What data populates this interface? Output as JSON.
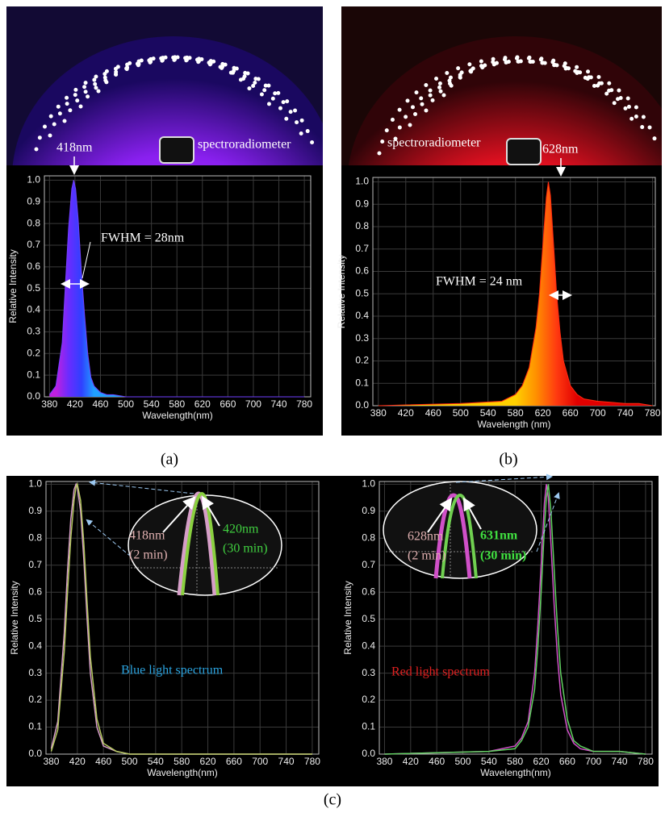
{
  "panel_labels": [
    "(a)",
    "(b)",
    "(c)"
  ],
  "chart_data": [
    {
      "type": "area",
      "x_label": "Wavelength(nm)",
      "y_label": "Relative Intensity",
      "annotations": [
        "418nm",
        "spectroradiometer",
        "FWHM = 28nm"
      ],
      "x": [
        380,
        390,
        400,
        405,
        410,
        415,
        418,
        421,
        425,
        430,
        435,
        440,
        445,
        450,
        460,
        470,
        480,
        500,
        540,
        600,
        700,
        780
      ],
      "values": [
        0.01,
        0.05,
        0.25,
        0.52,
        0.78,
        0.96,
        1.0,
        0.96,
        0.82,
        0.58,
        0.38,
        0.2,
        0.09,
        0.05,
        0.02,
        0.01,
        0.01,
        0,
        0,
        0,
        0,
        0
      ],
      "color": "#7040ff",
      "fill_colors": [
        "#c020e0",
        "#6a2cff",
        "#3040ff",
        "#20a0ff"
      ],
      "xlim": [
        372,
        790
      ],
      "xticks": [
        380,
        420,
        460,
        500,
        540,
        580,
        620,
        660,
        700,
        740,
        780
      ],
      "ylim": [
        0,
        1.02
      ],
      "yticks": [
        {
          "value": 0,
          "label": "0.0"
        },
        0.1,
        0.2,
        0.3,
        0.4,
        0.5,
        0.6,
        0.7,
        0.8,
        0.9,
        {
          "value": 1,
          "label": "1.0"
        }
      ],
      "grid": true
    },
    {
      "type": "area",
      "x_label": "Wavelength (nm)",
      "y_label": "Relative Intensity",
      "annotations": [
        "spectroradiometer",
        "628nm",
        "FWHM = 24 nm"
      ],
      "x": [
        380,
        500,
        560,
        580,
        590,
        600,
        610,
        615,
        620,
        625,
        628,
        631,
        636,
        640,
        645,
        650,
        660,
        670,
        680,
        700,
        740,
        760,
        780
      ],
      "values": [
        0,
        0.01,
        0.02,
        0.05,
        0.09,
        0.17,
        0.35,
        0.5,
        0.72,
        0.93,
        1.0,
        0.94,
        0.7,
        0.5,
        0.33,
        0.2,
        0.09,
        0.05,
        0.03,
        0.02,
        0.01,
        0.01,
        0
      ],
      "color": "#ff2a10",
      "fill_colors": [
        "#ffd000",
        "#ff9000",
        "#ff3a10",
        "#e00000"
      ],
      "xlim": [
        372,
        784
      ],
      "xticks": [
        380,
        420,
        460,
        500,
        540,
        580,
        620,
        660,
        700,
        740,
        780
      ],
      "ylim": [
        0,
        1.02
      ],
      "yticks": [
        {
          "value": 0,
          "label": "0.0"
        },
        0.1,
        0.2,
        0.3,
        0.4,
        0.5,
        0.6,
        0.7,
        0.8,
        0.9,
        {
          "value": 1,
          "label": "1.0"
        }
      ],
      "grid": true
    },
    {
      "type": "line",
      "x_label": "Wavelength(nm)",
      "y_label": "Relative Intensity",
      "annotations": [
        "418nm",
        "(2 min)",
        "420nm",
        "(30 min)",
        "Blue light spectrum"
      ],
      "x": [
        380,
        390,
        400,
        405,
        410,
        415,
        418,
        420,
        425,
        430,
        435,
        440,
        450,
        460,
        480,
        500,
        600,
        780
      ],
      "series": [
        {
          "color": "#d69ec8",
          "values": [
            0.02,
            0.12,
            0.45,
            0.68,
            0.87,
            0.98,
            1.0,
            0.99,
            0.9,
            0.72,
            0.5,
            0.3,
            0.1,
            0.03,
            0.01,
            0,
            0,
            0
          ]
        },
        {
          "color": "#b4c860",
          "values": [
            0.01,
            0.09,
            0.38,
            0.6,
            0.8,
            0.94,
            0.99,
            1.0,
            0.94,
            0.78,
            0.56,
            0.36,
            0.13,
            0.04,
            0.01,
            0,
            0,
            0
          ]
        }
      ],
      "xlim": [
        372,
        790
      ],
      "xticks": [
        380,
        420,
        460,
        500,
        540,
        580,
        620,
        660,
        700,
        740,
        780
      ],
      "ylim": [
        0,
        1.01
      ],
      "yticks": [
        {
          "value": 0,
          "label": "0.0"
        },
        0.1,
        0.2,
        0.3,
        0.4,
        0.5,
        0.6,
        0.7,
        0.8,
        0.9,
        {
          "value": 1,
          "label": "1.0"
        }
      ],
      "grid": true
    },
    {
      "type": "line",
      "x_label": "Wavelength(nm)",
      "y_label": "Relative Intensity",
      "annotations": [
        "628nm",
        "(2 min)",
        "631nm",
        "(30 min)",
        "Red light spectrum"
      ],
      "x": [
        380,
        540,
        580,
        590,
        600,
        610,
        615,
        620,
        625,
        628,
        631,
        635,
        640,
        645,
        650,
        660,
        670,
        680,
        700,
        740,
        780
      ],
      "series": [
        {
          "color": "#d050c8",
          "values": [
            0,
            0.01,
            0.03,
            0.06,
            0.12,
            0.3,
            0.48,
            0.7,
            0.93,
            1.0,
            0.95,
            0.78,
            0.55,
            0.36,
            0.22,
            0.09,
            0.04,
            0.02,
            0.01,
            0.01,
            0
          ]
        },
        {
          "color": "#60d060",
          "values": [
            0,
            0.01,
            0.02,
            0.05,
            0.1,
            0.24,
            0.4,
            0.6,
            0.84,
            0.95,
            1.0,
            0.9,
            0.68,
            0.47,
            0.3,
            0.13,
            0.05,
            0.03,
            0.01,
            0.01,
            0
          ]
        }
      ],
      "xlim": [
        372,
        790
      ],
      "xticks": [
        380,
        420,
        460,
        500,
        540,
        580,
        620,
        660,
        700,
        740,
        780
      ],
      "ylim": [
        0,
        1.01
      ],
      "yticks": [
        {
          "value": 0,
          "label": "0.0"
        },
        0.1,
        0.2,
        0.3,
        0.4,
        0.5,
        0.6,
        0.7,
        0.8,
        0.9,
        {
          "value": 1,
          "label": "1.0"
        }
      ],
      "grid": true
    }
  ]
}
